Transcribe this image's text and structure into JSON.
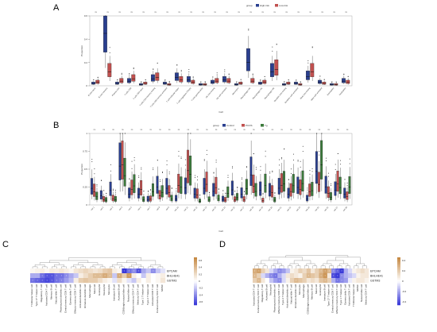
{
  "panels": {
    "a": "A",
    "b": "B",
    "c": "C",
    "d": "D"
  },
  "colors": {
    "high_risk": "#2a3f8f",
    "low_risk": "#c1504f",
    "pos": "#c68a44",
    "neg": "#3a3ad8",
    "neutral": "#ffffff"
  },
  "chart_data": [
    {
      "type": "box",
      "panel": "A",
      "legend_title": "group",
      "legend": [
        "High-risk",
        "Low-risk"
      ],
      "legend_placement": "top-right",
      "ylabel": "Proportion",
      "xlabel": "Cell",
      "ylim": [
        0,
        0.6
      ],
      "yticks": [
        0,
        0.2,
        0.4,
        0.6
      ],
      "categories": [
        "B cells naive",
        "B cells memory",
        "Plasma cells",
        "T cells CD8",
        "T cells CD4 naive",
        "T cells CD4 memory resting",
        "T cells CD4 memory activated",
        "T cells follicular helper",
        "T cells regulatory (Tregs)",
        "T cells gamma delta",
        "NK cells resting",
        "NK cells activated",
        "Monocytes",
        "Macrophages M0",
        "Macrophages M1",
        "Macrophages M2",
        "Dendritic cells resting",
        "Dendritic cells activated",
        "Mast cells resting",
        "Mast cells activated",
        "Eosinophils",
        "Neutrophils"
      ],
      "series": [
        {
          "name": "High-risk",
          "medians": [
            0.02,
            0.45,
            0.02,
            0.04,
            0.01,
            0.06,
            0.02,
            0.07,
            0.05,
            0.01,
            0.03,
            0.05,
            0.01,
            0.2,
            0.02,
            0.12,
            0.01,
            0.02,
            0.08,
            0.03,
            0.01,
            0.04
          ]
        },
        {
          "name": "Low-risk",
          "medians": [
            0.03,
            0.12,
            0.04,
            0.06,
            0.02,
            0.07,
            0.01,
            0.05,
            0.03,
            0.01,
            0.04,
            0.04,
            0.02,
            0.04,
            0.03,
            0.14,
            0.02,
            0.01,
            0.12,
            0.02,
            0.01,
            0.03
          ]
        }
      ]
    },
    {
      "type": "box",
      "panel": "B",
      "legend_title": "group",
      "legend": [
        "Control",
        "PCOS",
        "Tg"
      ],
      "legend_placement": "top-right",
      "ylabel": "Proportion",
      "xlabel": "Cell",
      "ylim": [
        0,
        1.0
      ],
      "yticks": [
        0,
        0.25,
        0.5,
        0.75,
        1.0
      ],
      "categories_count": 28
    },
    {
      "type": "heatmap",
      "panel": "C",
      "rows": [
        "EPCAM",
        "BHLHE41",
        "GSTM3"
      ],
      "scale_ticks": [
        "0.6",
        "0.4",
        "0.2",
        "0",
        "-0.2",
        "-0.4",
        "-0.6"
      ],
      "columns": [
        "T follicular helper cell",
        "Type 17 T helper cell",
        "Regulatory T cell",
        "Activated CD4 T cell",
        "Memory B cell",
        "Natural killer T cell",
        "Plasmacytoid dendritic cell",
        "Central memory CD8 T cell",
        "Gamma delta T cell",
        "Effector memory CD8 T cell",
        "Activated dendritic cell",
        "Immature dendritic cell",
        "Macrophage",
        "Mast cell",
        "Eosinophil",
        "Neutrophil",
        "Monocyte",
        "Immature B cell",
        "Activated B cell",
        "CD56bright natural killer cell",
        "Natural killer cell",
        "Effector memory CD4 T cell",
        "Memory CD4 T cell",
        "Type 1 T helper cell",
        "Type 2 T helper cell",
        "Activated CD8 T cell",
        "Central memory CD4 T cell",
        "MDSC"
      ],
      "values": [
        [
          0.05,
          0.08,
          0.1,
          0.05,
          0.12,
          0.1,
          0.15,
          0.1,
          0.05,
          0.15,
          0.2,
          0.25,
          0.2,
          0.15,
          0.2,
          0.3,
          0.35,
          0.1,
          0.05,
          -0.7,
          -0.5,
          -0.4,
          -0.6,
          -0.3,
          -0.2,
          -0.4,
          -0.2,
          -0.1
        ],
        [
          -0.3,
          -0.3,
          -0.5,
          -0.6,
          -0.6,
          -0.5,
          -0.5,
          -0.4,
          -0.3,
          -0.2,
          0.1,
          0.2,
          0.3,
          0.4,
          0.4,
          0.5,
          0.4,
          -0.2,
          0.5,
          0.3,
          0.6,
          0.1,
          0.0,
          -0.2,
          0.1,
          0.0,
          0.05,
          0.1
        ],
        [
          -0.5,
          -0.55,
          -0.6,
          -0.65,
          -0.6,
          -0.5,
          -0.45,
          -0.35,
          -0.25,
          0.1,
          0.3,
          0.35,
          0.3,
          0.3,
          0.2,
          0.1,
          0.05,
          -0.1,
          0.2,
          0.05,
          -0.1,
          -0.2,
          0.1,
          0.0,
          0.1,
          0.0,
          0.05,
          0.15
        ]
      ]
    },
    {
      "type": "heatmap",
      "panel": "D",
      "rows": [
        "EPCAM",
        "BHLHE41",
        "GSTM3"
      ],
      "scale_ticks": [
        "0.4",
        "0.2",
        "0",
        "-0.2",
        "-0.4"
      ],
      "columns": [
        "Activated CD4 T cell",
        "Central memory CD4 T cell",
        "Regulatory T cell",
        "Activated B cell",
        "Neutrophil",
        "Plasmacytoid dendritic cell",
        "Effector memory CD8 T cell",
        "Type 2 T helper cell",
        "Activated dendritic cell",
        "Natural killer T cell",
        "Immature dendritic cell",
        "Monocyte",
        "Macrophage",
        "CD56bright natural killer cell",
        "Memory B cell",
        "Mast cell",
        "Eosinophil",
        "Immature B cell",
        "Type 17 T helper cell",
        "Central memory CD8 T cell",
        "Effector memory CD4 T cell",
        "Type 1 T helper cell",
        "Gamma delta T cell",
        "Activated CD8 T cell",
        "T follicular helper cell",
        "MDSC",
        "Natural killer cell",
        "Memory CD4 T cell"
      ],
      "values": [
        [
          0.35,
          0.4,
          0.2,
          0.1,
          -0.1,
          -0.2,
          -0.3,
          -0.25,
          -0.15,
          0.05,
          0.1,
          0.2,
          0.15,
          0.25,
          0.1,
          0.2,
          0.3,
          0.4,
          0.3,
          -0.3,
          -0.4,
          -0.5,
          -0.2,
          -0.1,
          0.05,
          0.1,
          0.15,
          0.1
        ],
        [
          0.3,
          0.2,
          -0.1,
          -0.2,
          -0.3,
          -0.35,
          -0.2,
          -0.1,
          0.1,
          0.15,
          0.1,
          0.05,
          0.2,
          0.3,
          0.25,
          0.2,
          0.35,
          0.45,
          0.1,
          -0.45,
          -0.5,
          -0.3,
          -0.2,
          -0.15,
          -0.1,
          0.05,
          0.1,
          0.1
        ],
        [
          0.2,
          0.3,
          0.1,
          0.0,
          -0.15,
          -0.25,
          -0.3,
          -0.1,
          0.05,
          0.2,
          0.3,
          0.25,
          0.2,
          0.1,
          0.15,
          0.1,
          0.25,
          0.3,
          0.2,
          -0.2,
          -0.35,
          -0.3,
          -0.25,
          -0.05,
          0.05,
          0.1,
          0.1,
          0.05
        ]
      ]
    }
  ]
}
